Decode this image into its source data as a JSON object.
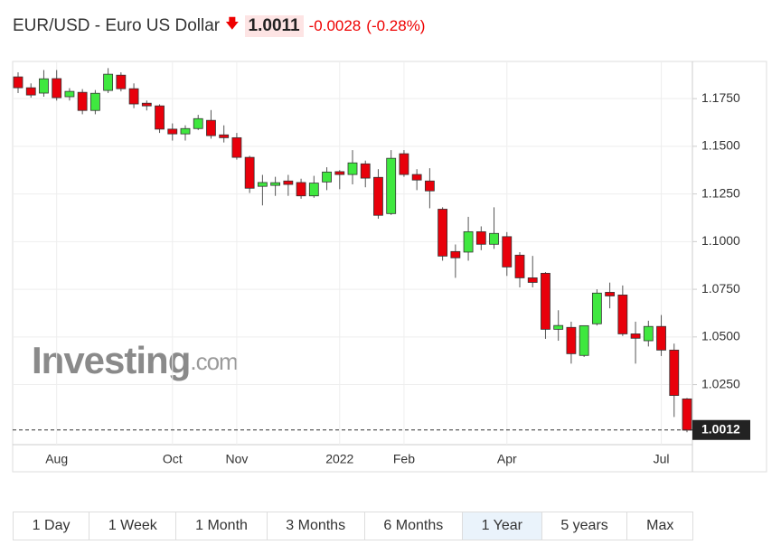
{
  "header": {
    "title": "EUR/USD - Euro US Dollar",
    "price": 1.0011,
    "change": -0.0028,
    "change_pct": "(-0.28%)"
  },
  "watermark": {
    "brand": "Investing",
    "suffix": ".com"
  },
  "ranges": {
    "buttons": [
      "1 Day",
      "1 Week",
      "1 Month",
      "3 Months",
      "6 Months",
      "1 Year",
      "5 years",
      "Max"
    ],
    "active": 5
  },
  "chart_data": {
    "type": "candlestick",
    "categories": [
      null,
      null,
      null,
      "Aug",
      null,
      null,
      null,
      null,
      null,
      null,
      null,
      null,
      "Oct",
      null,
      null,
      null,
      null,
      "Nov",
      null,
      null,
      null,
      null,
      null,
      null,
      null,
      "2022",
      null,
      null,
      null,
      null,
      "Feb",
      null,
      null,
      null,
      null,
      null,
      null,
      null,
      "Apr",
      null,
      null,
      null,
      null,
      null,
      null,
      null,
      null,
      null,
      null,
      null,
      "Jul",
      null,
      null
    ],
    "open": [
      1.1864,
      1.1807,
      1.1779,
      1.1855,
      1.176,
      1.1783,
      1.1688,
      1.1793,
      1.1873,
      1.1802,
      1.1726,
      1.1712,
      1.159,
      1.1565,
      1.1593,
      1.1636,
      1.156,
      1.1545,
      1.1442,
      1.129,
      1.1295,
      1.1318,
      1.131,
      1.124,
      1.1313,
      1.1367,
      1.1352,
      1.1408,
      1.1337,
      1.1147,
      1.1461,
      1.1352,
      1.1318,
      1.117,
      1.0948,
      1.0945,
      1.1052,
      1.0986,
      1.1026,
      1.0929,
      1.081,
      1.0834,
      1.054,
      1.055,
      1.0403,
      1.0569,
      1.0734,
      1.072,
      1.0516,
      1.048,
      1.0555,
      1.0431,
      1.0175
    ],
    "high": [
      1.1888,
      1.183,
      1.19,
      1.19,
      1.1805,
      1.18,
      1.1795,
      1.191,
      1.1888,
      1.183,
      1.174,
      1.172,
      1.162,
      1.161,
      1.1665,
      1.169,
      1.161,
      1.157,
      1.145,
      1.135,
      1.134,
      1.135,
      1.133,
      1.1345,
      1.139,
      1.1375,
      1.148,
      1.1425,
      1.138,
      1.148,
      1.148,
      1.138,
      1.1385,
      1.118,
      1.0985,
      1.113,
      1.108,
      1.118,
      1.105,
      1.0945,
      1.0925,
      1.084,
      1.064,
      1.058,
      1.056,
      1.075,
      1.0785,
      1.077,
      1.058,
      1.0585,
      1.0615,
      1.0465,
      1.018
    ],
    "low": [
      1.1779,
      1.1755,
      1.176,
      1.174,
      1.174,
      1.1668,
      1.1668,
      1.1779,
      1.1788,
      1.17,
      1.1688,
      1.157,
      1.153,
      1.153,
      1.1585,
      1.154,
      1.152,
      1.143,
      1.1255,
      1.119,
      1.124,
      1.124,
      1.1225,
      1.123,
      1.127,
      1.1275,
      1.13,
      1.1285,
      1.112,
      1.114,
      1.134,
      1.127,
      1.1175,
      1.09,
      1.081,
      1.09,
      1.0955,
      1.0962,
      1.082,
      1.076,
      1.076,
      1.049,
      1.048,
      1.036,
      1.0395,
      1.056,
      1.065,
      1.0505,
      1.036,
      1.045,
      1.04,
      1.008,
      1.0
    ],
    "close": [
      1.1807,
      1.1769,
      1.1854,
      1.1755,
      1.1788,
      1.1688,
      1.1778,
      1.1878,
      1.1802,
      1.1722,
      1.1712,
      1.159,
      1.1565,
      1.1593,
      1.1645,
      1.1556,
      1.1545,
      1.1442,
      1.128,
      1.131,
      1.1309,
      1.13,
      1.124,
      1.1307,
      1.1365,
      1.1352,
      1.1413,
      1.1333,
      1.1138,
      1.1437,
      1.1352,
      1.1323,
      1.1266,
      1.0924,
      1.0915,
      1.1052,
      1.0986,
      1.1043,
      1.0867,
      1.081,
      1.0786,
      1.054,
      1.056,
      1.0412,
      1.0559,
      1.073,
      1.0715,
      1.0516,
      1.0493,
      1.0555,
      1.0431,
      1.0193,
      1.0011
    ],
    "up_color": "#3fe83f",
    "down_color": "#e8000b",
    "ylim": [
      0.9935,
      1.1945
    ],
    "yticks": [
      {
        "value": 1.025,
        "label": "1.0250"
      },
      {
        "value": 1.05,
        "label": "1.0500"
      },
      {
        "value": 1.075,
        "label": "1.0750"
      },
      {
        "value": 1.1,
        "label": "1.1000"
      },
      {
        "value": 1.125,
        "label": "1.1250"
      },
      {
        "value": 1.15,
        "label": "1.1500"
      },
      {
        "value": 1.175,
        "label": "1.1750"
      }
    ],
    "last_price": 1.0012,
    "grid": true
  }
}
